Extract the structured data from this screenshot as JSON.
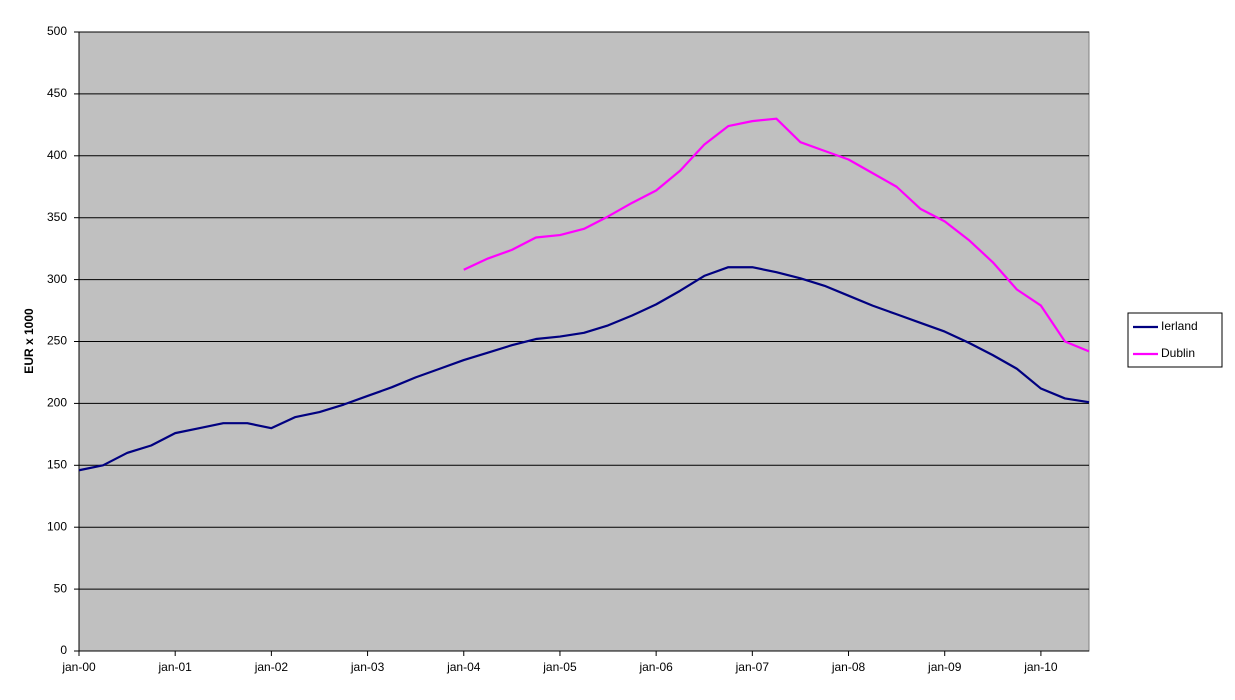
{
  "chart_data": {
    "type": "line",
    "y_label": "EUR x 1000",
    "categories": [
      "jan-00",
      null,
      null,
      null,
      "jan-01",
      null,
      null,
      null,
      "jan-02",
      null,
      null,
      null,
      "jan-03",
      null,
      null,
      null,
      "jan-04",
      null,
      null,
      null,
      "jan-05",
      null,
      null,
      null,
      "jan-06",
      null,
      null,
      null,
      "jan-07",
      null,
      null,
      null,
      "jan-08",
      null,
      null,
      null,
      "jan-09",
      null,
      null,
      null,
      "jan-10",
      null,
      null
    ],
    "series": [
      {
        "name": "Ierland",
        "color": "#000080",
        "values": [
          146,
          150,
          160,
          166,
          176,
          180,
          184,
          184,
          180,
          189,
          193,
          199,
          206,
          213,
          221,
          228,
          235,
          241,
          247,
          252,
          254,
          257,
          263,
          271,
          280,
          291,
          303,
          310,
          310,
          306,
          301,
          295,
          287,
          279,
          272,
          265,
          258,
          249,
          239,
          228,
          212,
          204,
          201
        ]
      },
      {
        "name": "Dublin",
        "color": "#ff00ff",
        "values": [
          null,
          null,
          null,
          null,
          null,
          null,
          null,
          null,
          null,
          null,
          null,
          null,
          null,
          null,
          null,
          null,
          308,
          317,
          324,
          334,
          336,
          341,
          351,
          362,
          372,
          388,
          409,
          424,
          428,
          430,
          411,
          404,
          397,
          386,
          375,
          357,
          347,
          332,
          314,
          292,
          279,
          250,
          242
        ]
      }
    ],
    "ylim": [
      0,
      500
    ],
    "yticks": [
      0,
      50,
      100,
      150,
      200,
      250,
      300,
      350,
      400,
      450,
      500
    ],
    "grid": true,
    "plot_background": "#c0c0c0",
    "legend": "right"
  }
}
